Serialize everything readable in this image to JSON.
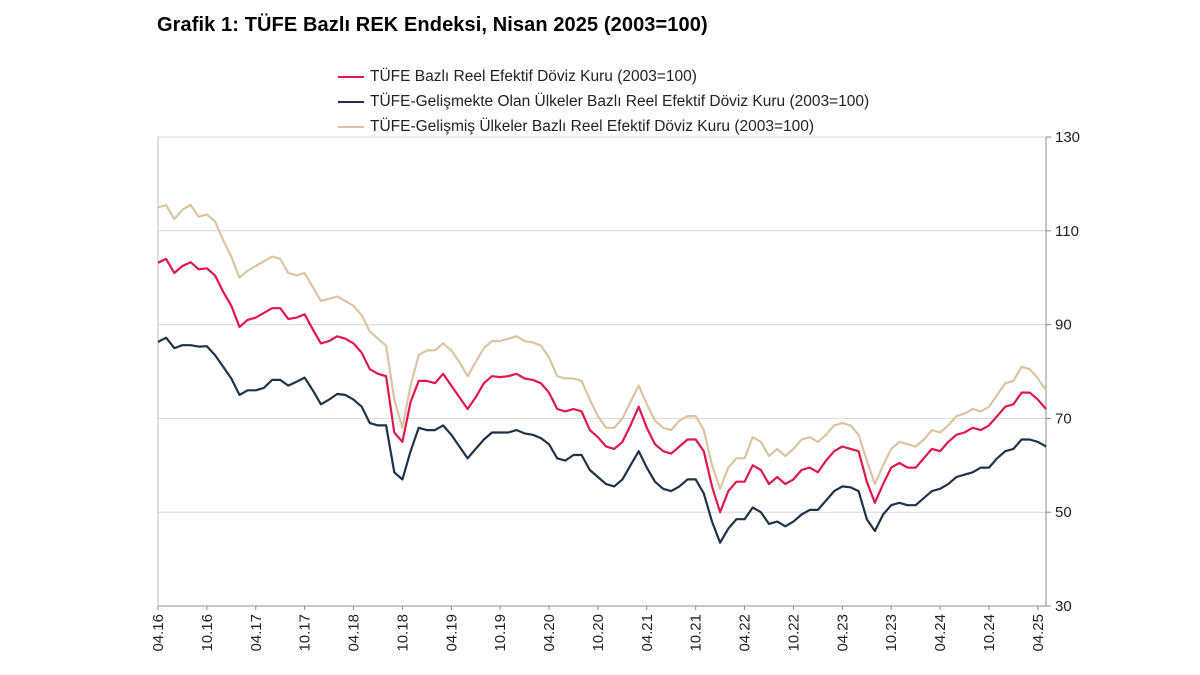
{
  "title": "Grafik 1: TÜFE Bazlı REK Endeksi, Nisan 2025 (2003=100)",
  "chart_data": {
    "type": "line",
    "title": "Grafik 1: TÜFE Bazlı REK Endeksi, Nisan 2025 (2003=100)",
    "xlabel": "",
    "ylabel": "",
    "ylim": [
      30,
      130
    ],
    "yticks": [
      "30",
      "50",
      "70",
      "90",
      "110",
      "130"
    ],
    "y_axis_side": "right",
    "grid": true,
    "legend_position": "top-center",
    "x_tick_labels": [
      "04.16",
      "10.16",
      "04.17",
      "10.17",
      "04.18",
      "10.18",
      "04.19",
      "10.19",
      "04.20",
      "10.20",
      "04.21",
      "10.21",
      "04.22",
      "10.22",
      "04.23",
      "10.23",
      "04.24",
      "10.24",
      "04.25"
    ],
    "x_start": "04.16",
    "x_frequency": "monthly",
    "series": [
      {
        "name": "TÜFE  Bazlı Reel Efektif Döviz Kuru (2003=100)",
        "color": "#e0174f",
        "values": [
          103.2,
          104.0,
          101.0,
          102.5,
          103.3,
          101.8,
          102.0,
          100.5,
          97.0,
          94.0,
          89.5,
          91.0,
          91.5,
          92.5,
          93.5,
          93.5,
          91.2,
          91.5,
          92.2,
          89.0,
          86.0,
          86.5,
          87.5,
          87.0,
          86.0,
          84.0,
          80.5,
          79.5,
          79.0,
          67.0,
          65.0,
          73.5,
          78.0,
          78.0,
          77.5,
          79.5,
          77.0,
          74.5,
          72.0,
          74.5,
          77.5,
          79.0,
          78.8,
          79.0,
          79.5,
          78.5,
          78.2,
          77.5,
          75.5,
          72.0,
          71.5,
          72.0,
          71.5,
          67.5,
          66.0,
          64.0,
          63.5,
          65.0,
          68.5,
          72.5,
          68.0,
          64.5,
          63.0,
          62.5,
          64.0,
          65.5,
          65.5,
          63.0,
          55.5,
          50.0,
          54.5,
          56.5,
          56.5,
          60.0,
          59.0,
          56.0,
          57.5,
          56.0,
          57.0,
          59.0,
          59.5,
          58.5,
          61.0,
          63.0,
          64.0,
          63.5,
          63.0,
          56.5,
          52.0,
          56.0,
          59.5,
          60.5,
          59.5,
          59.5,
          61.5,
          63.5,
          63.0,
          65.0,
          66.5,
          67.0,
          68.0,
          67.5,
          68.5,
          70.5,
          72.5,
          73.0,
          75.5,
          75.5,
          74.0,
          72.0
        ]
      },
      {
        "name": "TÜFE-Gelişmekte Olan Ülkeler Bazlı Reel Efektif Döviz Kuru (2003=100)",
        "color": "#1f3248",
        "values": [
          86.3,
          87.2,
          85.0,
          85.6,
          85.6,
          85.3,
          85.4,
          83.5,
          81.0,
          78.5,
          75.0,
          76.0,
          76.0,
          76.5,
          78.2,
          78.2,
          77.0,
          77.8,
          78.7,
          76.0,
          73.0,
          74.0,
          75.2,
          75.0,
          74.0,
          72.5,
          69.0,
          68.5,
          68.5,
          58.5,
          57.0,
          63.0,
          68.0,
          67.5,
          67.5,
          68.5,
          66.5,
          64.0,
          61.5,
          63.5,
          65.5,
          67.0,
          67.0,
          67.0,
          67.5,
          66.8,
          66.5,
          65.8,
          64.5,
          61.5,
          61.0,
          62.2,
          62.2,
          59.0,
          57.5,
          56.0,
          55.5,
          57.0,
          60.0,
          63.0,
          59.5,
          56.5,
          55.0,
          54.5,
          55.5,
          57.0,
          57.0,
          54.0,
          48.0,
          43.5,
          46.5,
          48.5,
          48.5,
          51.0,
          50.0,
          47.5,
          48.0,
          47.0,
          48.0,
          49.5,
          50.5,
          50.5,
          52.5,
          54.5,
          55.5,
          55.3,
          54.5,
          48.5,
          46.0,
          49.5,
          51.5,
          52.0,
          51.5,
          51.5,
          53.0,
          54.5,
          55.0,
          56.0,
          57.5,
          58.0,
          58.5,
          59.5,
          59.5,
          61.5,
          63.0,
          63.5,
          65.5,
          65.5,
          65.0,
          64.0
        ]
      },
      {
        "name": "TÜFE-Gelişmiş Ülkeler Bazlı Reel Efektif Döviz Kuru (2003=100)",
        "color": "#dbc4a2",
        "values": [
          115.0,
          115.5,
          112.5,
          114.5,
          115.5,
          113.0,
          113.5,
          112.0,
          108.0,
          104.5,
          100.0,
          101.5,
          102.5,
          103.5,
          104.5,
          104.0,
          101.0,
          100.5,
          101.0,
          98.0,
          95.0,
          95.5,
          96.0,
          95.0,
          94.0,
          92.0,
          88.5,
          87.0,
          85.5,
          74.0,
          68.0,
          77.0,
          83.5,
          84.5,
          84.5,
          86.0,
          84.5,
          82.0,
          79.0,
          82.0,
          85.0,
          86.5,
          86.5,
          87.0,
          87.5,
          86.5,
          86.2,
          85.5,
          83.0,
          79.0,
          78.5,
          78.5,
          78.0,
          74.0,
          70.5,
          68.0,
          68.0,
          70.0,
          73.5,
          77.0,
          73.0,
          69.5,
          68.0,
          67.5,
          69.5,
          70.5,
          70.5,
          67.5,
          60.0,
          55.0,
          59.5,
          61.5,
          61.5,
          66.0,
          65.0,
          62.0,
          63.5,
          62.0,
          63.5,
          65.5,
          66.0,
          65.0,
          66.5,
          68.5,
          69.0,
          68.5,
          66.5,
          61.0,
          56.0,
          60.0,
          63.5,
          65.0,
          64.5,
          64.0,
          65.5,
          67.5,
          67.0,
          68.5,
          70.5,
          71.0,
          72.0,
          71.5,
          72.5,
          75.0,
          77.5,
          78.0,
          81.0,
          80.5,
          78.5,
          76.0
        ]
      }
    ]
  }
}
